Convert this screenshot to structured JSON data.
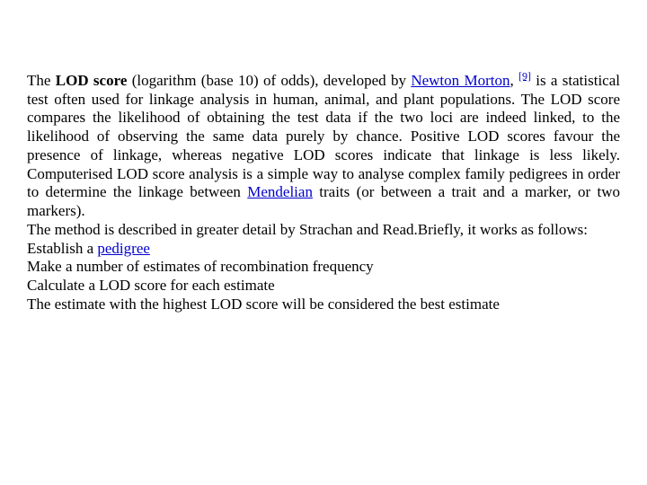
{
  "text": {
    "p1a": "The ",
    "bold1": "LOD score",
    "p1b": " (logarithm (base 10) of odds), developed by ",
    "link1": "Newton Morton",
    "p1c": ", ",
    "ref1": "[9]",
    "p1d": " is a statistical test often used for linkage analysis in human, animal, and plant populations. The LOD score compares the likelihood of obtaining the test data if the two loci are indeed linked, to the likelihood of observing the same data purely by chance. Positive LOD scores favour the presence of linkage, whereas negative LOD scores indicate that linkage is less likely. Computerised LOD score analysis is a simple way to analyse complex family pedigrees in order to determine the linkage between ",
    "link2": "Mendelian",
    "p1e": " traits (or between a trait and a marker, or two markers).",
    "p2": "The method is described in greater detail by Strachan and Read.Briefly, it works as follows:",
    "l1a": "Establish a ",
    "link3": "pedigree",
    "l2": "Make a number of estimates of recombination frequency",
    "l3": "Calculate a LOD score for each estimate",
    "l4": "The estimate with the highest LOD score will be considered the best estimate"
  },
  "colors": {
    "text": "#000000",
    "link": "#0000cc",
    "background": "#ffffff"
  },
  "font": {
    "family": "Times New Roman",
    "size_pt": 13
  }
}
